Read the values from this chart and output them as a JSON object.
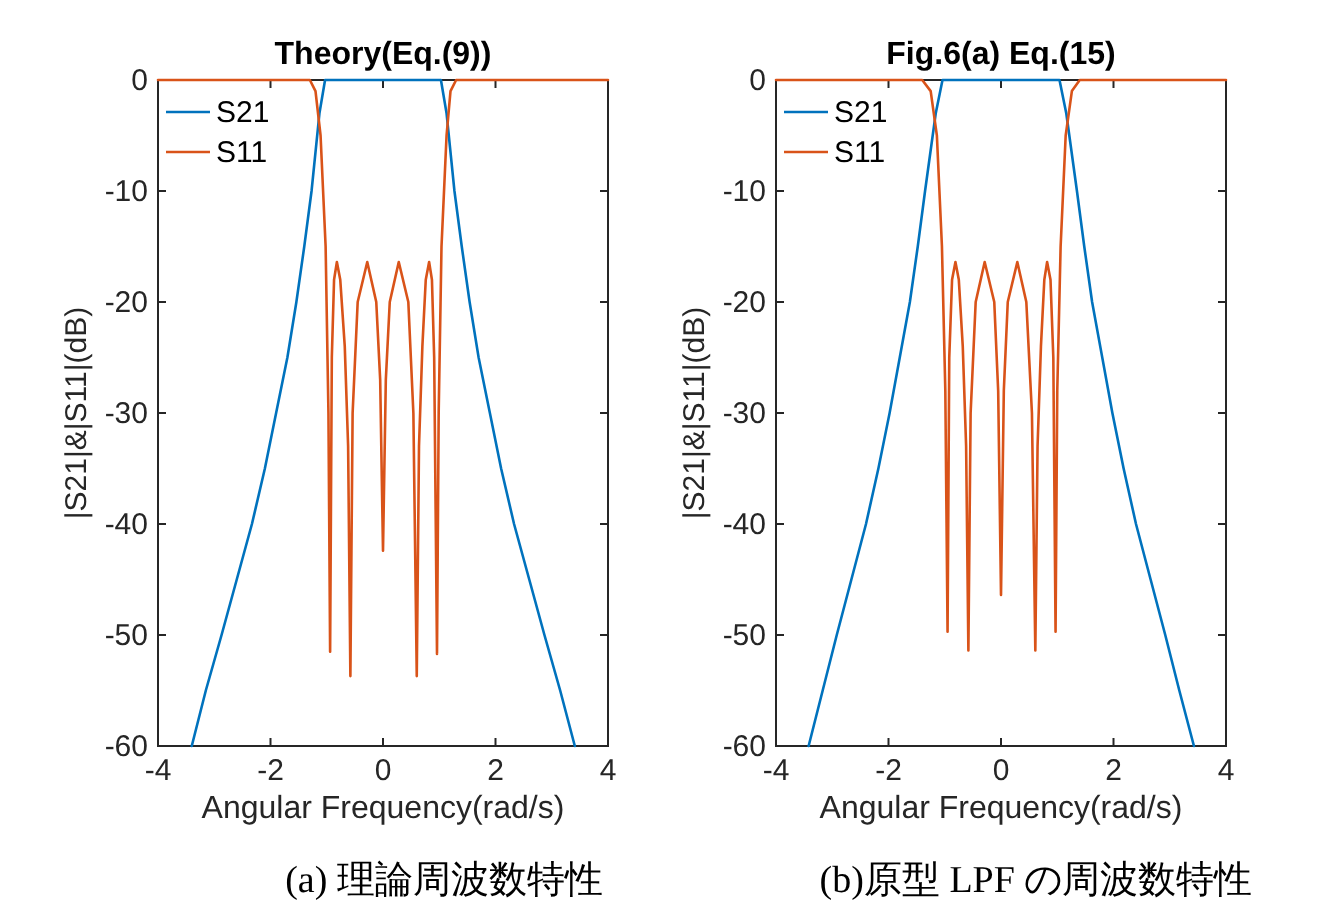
{
  "chart_data": [
    {
      "type": "line",
      "title": "Theory(Eq.(9))",
      "xlabel": "Angular Frequency(rad/s)",
      "ylabel": "|S21|&|S11|(dB)",
      "xlim": [
        -4,
        4
      ],
      "xticks": [
        -4,
        -2,
        0,
        2,
        4
      ],
      "ylim": [
        -60,
        0
      ],
      "yticks": [
        -60,
        -50,
        -40,
        -30,
        -20,
        -10,
        0
      ],
      "legend": "top left",
      "annotations": [
        "(a) 理論周波数特性"
      ],
      "series": [
        {
          "name": "S21",
          "color": "#0072bd",
          "x": [
            -3.4,
            -3.15,
            -2.87,
            -2.6,
            -2.33,
            -2.1,
            -1.9,
            -1.7,
            -1.54,
            -1.4,
            -1.27,
            -1.13,
            -1.03,
            -0.9,
            0,
            0.9,
            1.03,
            1.13,
            1.27,
            1.4,
            1.54,
            1.7,
            1.9,
            2.1,
            2.33,
            2.6,
            2.87,
            3.15,
            3.41
          ],
          "values": [
            -60,
            -55,
            -50,
            -45,
            -40,
            -35,
            -30,
            -25,
            -20,
            -15,
            -10,
            -3,
            0,
            0,
            0,
            0,
            0,
            -3,
            -10,
            -15,
            -20,
            -25,
            -30,
            -35,
            -40,
            -45,
            -50,
            -55,
            -60
          ]
        },
        {
          "name": "S11",
          "color": "#d95319",
          "x": [
            -4,
            -1.3,
            -1.2,
            -1.11,
            -1.02,
            -0.97,
            -0.94,
            -0.91,
            -0.87,
            -0.82,
            -0.76,
            -0.68,
            -0.62,
            -0.58,
            -0.54,
            -0.45,
            -0.28,
            -0.12,
            -0.05,
            0,
            0.05,
            0.12,
            0.28,
            0.45,
            0.54,
            0.6,
            0.64,
            0.7,
            0.76,
            0.82,
            0.87,
            0.91,
            0.96,
            0.99,
            1.04,
            1.13,
            1.2,
            1.3,
            4
          ],
          "values": [
            0,
            0,
            -1,
            -5,
            -15,
            -30,
            -51.5,
            -25,
            -18,
            -16.4,
            -18,
            -24,
            -33,
            -53.7,
            -30,
            -20,
            -16.4,
            -20,
            -27,
            -42.4,
            -27,
            -20,
            -16.4,
            -20,
            -30,
            -53.7,
            -33,
            -24,
            -18,
            -16.4,
            -18,
            -25,
            -51.7,
            -30,
            -15,
            -5,
            -1,
            0,
            0
          ]
        }
      ]
    },
    {
      "type": "line",
      "title": "Fig.6(a) Eq.(15)",
      "xlabel": "Angular Frequency(rad/s)",
      "ylabel": "|S21|&|S11|(dB)",
      "xlim": [
        -4,
        4
      ],
      "xticks": [
        -4,
        -2,
        0,
        2,
        4
      ],
      "ylim": [
        -60,
        0
      ],
      "yticks": [
        -60,
        -50,
        -40,
        -30,
        -20,
        -10,
        0
      ],
      "legend": "top left",
      "annotations": [
        "(b)原型 LPF の周波数特性"
      ],
      "series": [
        {
          "name": "S21",
          "color": "#0072bd",
          "x": [
            -3.42,
            -3.17,
            -2.92,
            -2.66,
            -2.4,
            -2.18,
            -1.98,
            -1.8,
            -1.62,
            -1.48,
            -1.35,
            -1.16,
            -1.04,
            -0.9,
            0,
            0.9,
            1.04,
            1.16,
            1.35,
            1.48,
            1.62,
            1.8,
            1.98,
            2.18,
            2.4,
            2.66,
            2.92,
            3.17,
            3.43
          ],
          "values": [
            -60,
            -55,
            -50,
            -45,
            -40,
            -35,
            -30,
            -25,
            -20,
            -15,
            -10,
            -3,
            0,
            0,
            0,
            0,
            0,
            -3,
            -10,
            -15,
            -20,
            -25,
            -30,
            -35,
            -40,
            -45,
            -50,
            -55,
            -60
          ]
        },
        {
          "name": "S11",
          "color": "#d95319",
          "x": [
            -4,
            -1.4,
            -1.25,
            -1.14,
            -1.05,
            -0.99,
            -0.95,
            -0.92,
            -0.87,
            -0.81,
            -0.75,
            -0.68,
            -0.62,
            -0.58,
            -0.54,
            -0.45,
            -0.29,
            -0.12,
            -0.05,
            0,
            0.05,
            0.12,
            0.29,
            0.45,
            0.55,
            0.61,
            0.65,
            0.71,
            0.77,
            0.82,
            0.88,
            0.93,
            0.97,
            1.0,
            1.06,
            1.15,
            1.26,
            1.4,
            4
          ],
          "values": [
            0,
            0,
            -1,
            -5,
            -15,
            -28,
            -49.7,
            -25,
            -18,
            -16.4,
            -18,
            -24,
            -33,
            -51.4,
            -30,
            -20,
            -16.4,
            -20,
            -28,
            -46.4,
            -28,
            -20,
            -16.4,
            -20,
            -30,
            -51.4,
            -33,
            -24,
            -18,
            -16.4,
            -18,
            -25,
            -49.7,
            -28,
            -15,
            -5,
            -1,
            0,
            0
          ]
        }
      ]
    }
  ]
}
